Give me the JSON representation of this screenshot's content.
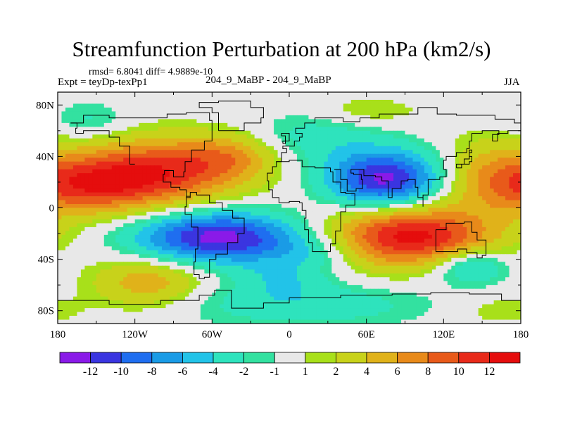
{
  "header": {
    "title": "Streamfunction Perturbation at 200 hPa (km2/s)",
    "stats": "rmsd= 6.8041 diff= 4.9889e-10",
    "expt": "Expt = teyDp-texPp1",
    "center_label": "204_9_MaBP - 204_9_MaBP",
    "season": "JJA"
  },
  "chart_data": {
    "type": "heatmap",
    "title": "Streamfunction Perturbation at 200 hPa (km2/s)",
    "x_ticks": [
      "180",
      "120W",
      "60W",
      "0",
      "60E",
      "120E",
      "180"
    ],
    "x_tick_values": [
      -180,
      -120,
      -60,
      0,
      60,
      120,
      180
    ],
    "y_ticks": [
      "80N",
      "40N",
      "0",
      "40S",
      "80S"
    ],
    "y_tick_values": [
      80,
      40,
      0,
      -40,
      -80
    ],
    "xlim": [
      -180,
      180
    ],
    "ylim": [
      -90,
      90
    ],
    "colorbar": {
      "levels": [
        -12,
        -10,
        -8,
        -6,
        -4,
        -2,
        -1,
        1,
        2,
        4,
        6,
        8,
        10,
        12
      ],
      "labels": [
        "-12",
        "-10",
        "-8",
        "-6",
        "-4",
        "-2",
        "-1",
        "1",
        "2",
        "4",
        "6",
        "8",
        "10",
        "12"
      ],
      "colors": [
        "#8a1ae8",
        "#3a35e0",
        "#1f6ef0",
        "#1a9be6",
        "#22c3e8",
        "#2ee3bd",
        "#33e1a0",
        "#e8e8e8",
        "#a8e01a",
        "#c8d21a",
        "#e0b21a",
        "#e88a1a",
        "#e85a1a",
        "#e82a1a",
        "#e50d0d"
      ]
    },
    "features": [
      {
        "lon": 75,
        "lat": 22,
        "value": -13,
        "sx": 32,
        "sy": 16
      },
      {
        "lon": -55,
        "lat": -23,
        "value": -13,
        "sx": 45,
        "sy": 14
      },
      {
        "lon": 95,
        "lat": -22,
        "value": 13,
        "sx": 45,
        "sy": 17
      },
      {
        "lon": -160,
        "lat": 18,
        "value": 10,
        "sx": 45,
        "sy": 16
      },
      {
        "lon": -95,
        "lat": 30,
        "value": 9,
        "sx": 45,
        "sy": 18
      },
      {
        "lon": -45,
        "lat": 40,
        "value": 4,
        "sx": 25,
        "sy": 12
      },
      {
        "lon": 20,
        "lat": 55,
        "value": -3,
        "sx": 35,
        "sy": 14
      },
      {
        "lon": 20,
        "lat": -35,
        "value": -3,
        "sx": 28,
        "sy": 10
      },
      {
        "lon": -110,
        "lat": -58,
        "value": 5.5,
        "sx": 30,
        "sy": 14
      },
      {
        "lon": 60,
        "lat": 75,
        "value": 2.2,
        "sx": 30,
        "sy": 8
      },
      {
        "lon": -155,
        "lat": 68,
        "value": -2.5,
        "sx": 20,
        "sy": 10
      },
      {
        "lon": 140,
        "lat": -45,
        "value": -6,
        "sx": 22,
        "sy": 10
      },
      {
        "lon": 10,
        "lat": -75,
        "value": -3.5,
        "sx": 70,
        "sy": 12
      },
      {
        "lon": 150,
        "lat": 35,
        "value": 2.5,
        "sx": 25,
        "sy": 18
      },
      {
        "lon": 165,
        "lat": -80,
        "value": 2,
        "sx": 25,
        "sy": 8
      },
      {
        "lon": -5,
        "lat": -55,
        "value": -3,
        "sx": 25,
        "sy": 10
      }
    ]
  }
}
